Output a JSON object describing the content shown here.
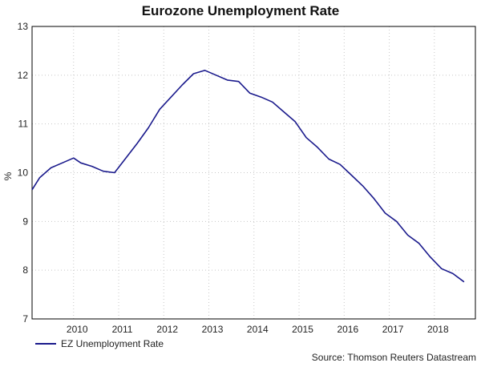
{
  "chart_data": {
    "type": "line",
    "title": "Eurozone Unemployment Rate",
    "ylabel": "%",
    "xlabel": "",
    "ylim": [
      7,
      13
    ],
    "yticks": [
      7,
      8,
      9,
      10,
      11,
      12,
      13
    ],
    "xlim": [
      2009.0,
      2018.83
    ],
    "xticks": [
      "2010",
      "2011",
      "2012",
      "2013",
      "2014",
      "2015",
      "2016",
      "2017",
      "2018"
    ],
    "grid": true,
    "legend_position": "bottom-left",
    "series": [
      {
        "name": "EZ Unemployment Rate",
        "color": "#1a1a8c",
        "x": [
          2009.0,
          2009.17,
          2009.42,
          2009.67,
          2009.92,
          2010.08,
          2010.33,
          2010.58,
          2010.83,
          2011.08,
          2011.33,
          2011.58,
          2011.83,
          2012.08,
          2012.33,
          2012.58,
          2012.83,
          2013.08,
          2013.33,
          2013.58,
          2013.83,
          2014.08,
          2014.33,
          2014.58,
          2014.83,
          2015.08,
          2015.33,
          2015.58,
          2015.83,
          2016.08,
          2016.33,
          2016.58,
          2016.83,
          2017.08,
          2017.33,
          2017.58,
          2017.83,
          2018.08,
          2018.33,
          2018.58
        ],
        "values": [
          9.65,
          9.9,
          10.1,
          10.2,
          10.3,
          10.2,
          10.13,
          10.03,
          10.0,
          10.3,
          10.6,
          10.92,
          11.3,
          11.55,
          11.8,
          12.03,
          12.1,
          12.0,
          11.9,
          11.87,
          11.63,
          11.55,
          11.45,
          11.25,
          11.05,
          10.72,
          10.52,
          10.28,
          10.17,
          9.95,
          9.73,
          9.47,
          9.17,
          9.0,
          8.72,
          8.55,
          8.27,
          8.03,
          7.93,
          7.76
        ]
      }
    ],
    "source": "Source: Thomson Reuters Datastream"
  }
}
